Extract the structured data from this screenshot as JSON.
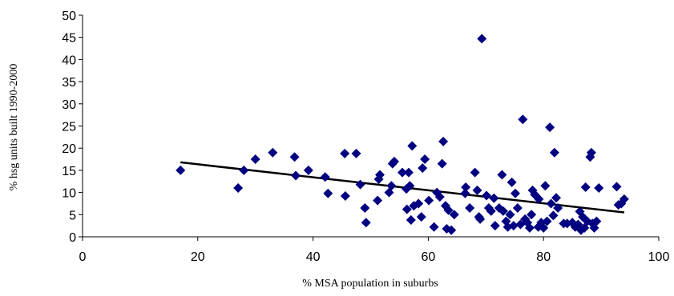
{
  "chart_data": {
    "type": "scatter",
    "title": "",
    "xlabel": "% MSA population in suburbs",
    "ylabel": "% hsg units built 1990-2000",
    "xlim": [
      0,
      100
    ],
    "ylim": [
      0,
      50
    ],
    "xticks": [
      0,
      20,
      40,
      60,
      80,
      100
    ],
    "yticks": [
      0,
      5,
      10,
      15,
      20,
      25,
      30,
      35,
      40,
      45,
      50
    ],
    "grid": false,
    "legend": "none",
    "marker": "diamond",
    "marker_color": "#000080",
    "trendline": {
      "x": [
        17,
        94
      ],
      "y": [
        16.8,
        5.5
      ],
      "color": "#000000"
    },
    "points": [
      [
        17,
        15
      ],
      [
        27,
        11
      ],
      [
        28,
        15
      ],
      [
        30,
        17.5
      ],
      [
        33,
        19
      ],
      [
        36.8,
        18
      ],
      [
        37,
        13.8
      ],
      [
        39.2,
        15
      ],
      [
        42.1,
        13.5
      ],
      [
        42.6,
        9.8
      ],
      [
        45.5,
        18.8
      ],
      [
        45.6,
        9.2
      ],
      [
        47.5,
        18.8
      ],
      [
        48.2,
        11.8
      ],
      [
        49,
        6.5
      ],
      [
        49.2,
        3.2
      ],
      [
        51.2,
        8.2
      ],
      [
        51.4,
        13
      ],
      [
        51.6,
        14
      ],
      [
        53.2,
        10
      ],
      [
        53.6,
        11.5
      ],
      [
        53.8,
        16.5
      ],
      [
        54.1,
        17
      ],
      [
        55.5,
        14.5
      ],
      [
        56.2,
        10.8
      ],
      [
        56.3,
        6.2
      ],
      [
        56.6,
        14.5
      ],
      [
        56.8,
        11.5
      ],
      [
        57,
        3.8
      ],
      [
        57.2,
        20.5
      ],
      [
        57.5,
        7
      ],
      [
        58.3,
        7.5
      ],
      [
        58.8,
        4.5
      ],
      [
        59,
        15.5
      ],
      [
        59.4,
        17.5
      ],
      [
        60.1,
        8.2
      ],
      [
        61,
        2.2
      ],
      [
        61.5,
        10
      ],
      [
        62,
        9
      ],
      [
        62.4,
        16.5
      ],
      [
        62.6,
        21.5
      ],
      [
        63,
        7
      ],
      [
        63.2,
        1.8
      ],
      [
        63.5,
        6
      ],
      [
        64,
        1.5
      ],
      [
        64.5,
        5
      ],
      [
        66.4,
        9.8
      ],
      [
        66.5,
        11.2
      ],
      [
        67.2,
        6.5
      ],
      [
        68.1,
        14.5
      ],
      [
        68.5,
        10.5
      ],
      [
        68.8,
        4.5
      ],
      [
        69,
        4
      ],
      [
        69.3,
        44.7
      ],
      [
        70.1,
        9.3
      ],
      [
        70.5,
        6.5
      ],
      [
        70.9,
        5.8
      ],
      [
        71.4,
        8.7
      ],
      [
        71.6,
        2.5
      ],
      [
        72.3,
        6.5
      ],
      [
        72.8,
        14
      ],
      [
        73,
        5.8
      ],
      [
        73.5,
        3.5
      ],
      [
        73.8,
        2.2
      ],
      [
        74.2,
        5
      ],
      [
        74.5,
        12.3
      ],
      [
        74.8,
        2.5
      ],
      [
        75.1,
        9.8
      ],
      [
        75.5,
        6.5
      ],
      [
        76,
        2.8
      ],
      [
        76.4,
        26.5
      ],
      [
        76.8,
        4
      ],
      [
        77.2,
        3.2
      ],
      [
        77.6,
        2
      ],
      [
        77.9,
        5
      ],
      [
        78.1,
        10.5
      ],
      [
        78.5,
        9.5
      ],
      [
        79.1,
        2.2
      ],
      [
        79.2,
        8.5
      ],
      [
        79.6,
        3.2
      ],
      [
        80,
        2
      ],
      [
        80.3,
        11.5
      ],
      [
        80.6,
        3.5
      ],
      [
        81.1,
        24.7
      ],
      [
        81.3,
        7.5
      ],
      [
        81.7,
        4.8
      ],
      [
        81.9,
        19
      ],
      [
        82.2,
        8.8
      ],
      [
        82.5,
        6.5
      ],
      [
        83.5,
        3
      ],
      [
        84.1,
        3
      ],
      [
        85,
        3.2
      ],
      [
        85.5,
        2.2
      ],
      [
        86,
        2.8
      ],
      [
        86.3,
        5.7
      ],
      [
        86.5,
        1.5
      ],
      [
        86.8,
        4.5
      ],
      [
        87.1,
        2
      ],
      [
        87.3,
        11.2
      ],
      [
        87.6,
        3.5
      ],
      [
        88.1,
        18
      ],
      [
        88.3,
        19
      ],
      [
        88.5,
        3
      ],
      [
        88.8,
        2
      ],
      [
        89.2,
        3.5
      ],
      [
        89.6,
        11
      ],
      [
        92.7,
        11.3
      ],
      [
        93,
        7.2
      ],
      [
        93.5,
        7.5
      ],
      [
        94,
        8.5
      ]
    ]
  }
}
